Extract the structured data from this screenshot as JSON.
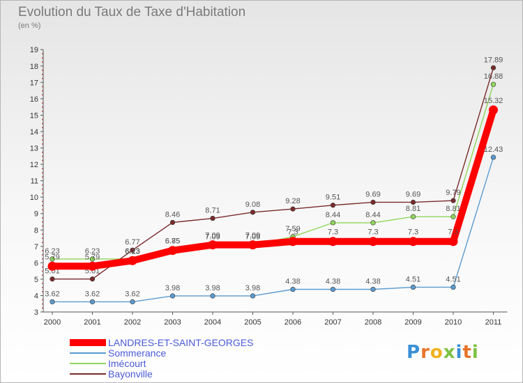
{
  "title": "Evolution du Taux de Taxe d'Habitation",
  "subtitle": "(en %)",
  "logo": {
    "text": "Proxiti",
    "letter_colors": [
      "#3a8fd6",
      "#e8742a",
      "#f0b21e",
      "#7cc242",
      "#3a8fd6",
      "#e8742a",
      "#7cc242"
    ]
  },
  "chart_data": {
    "type": "line",
    "x": [
      "2000",
      "2001",
      "2002",
      "2003",
      "2004",
      "2005",
      "2006",
      "2007",
      "2008",
      "2009",
      "2010",
      "2011"
    ],
    "ylim": [
      3,
      19
    ],
    "yticks": [
      3,
      4,
      5,
      6,
      7,
      8,
      9,
      10,
      11,
      12,
      13,
      14,
      15,
      16,
      17,
      18,
      19
    ],
    "grid": false,
    "legend_position": "bottom-left",
    "series": [
      {
        "name": "Sommerance",
        "color": "#5a9bd0",
        "values": [
          3.62,
          3.62,
          3.62,
          3.98,
          3.98,
          3.98,
          4.38,
          4.38,
          4.38,
          4.51,
          4.51,
          12.43
        ],
        "labels": [
          "3.62",
          "3.62",
          "3.62",
          "3.98",
          "3.98",
          "3.98",
          "4.38",
          "4.38",
          "4.38",
          "4.51",
          "4.51",
          "12.43"
        ]
      },
      {
        "name": "Imécourt",
        "color": "#8fd65a",
        "values": [
          6.23,
          6.23,
          6.23,
          6.85,
          7.09,
          7.09,
          7.59,
          8.44,
          8.44,
          8.81,
          8.81,
          16.88
        ],
        "labels": [
          "6.23",
          "6.23",
          "6.23",
          "6.85",
          "7.09",
          "7.09",
          "7.59",
          "8.44",
          "8.44",
          "8.81",
          "8.81",
          "16.88"
        ]
      },
      {
        "name": "Bayonville",
        "color": "#7a2a2a",
        "values": [
          5.01,
          5.01,
          6.77,
          8.46,
          8.71,
          9.08,
          9.28,
          9.51,
          9.69,
          9.69,
          9.79,
          17.89
        ],
        "labels": [
          "5.01",
          "5.01",
          "6.77",
          "8.46",
          "8.71",
          "9.08",
          "9.28",
          "9.51",
          "9.69",
          "9.69",
          "9.79",
          "17.89"
        ]
      },
      {
        "name": "LANDRES-ET-SAINT-GEORGES",
        "color": "#ff0000",
        "highlight": true,
        "values": [
          5.79,
          5.79,
          6.13,
          6.75,
          7.09,
          7.09,
          7.3,
          7.3,
          7.3,
          7.3,
          7.3,
          15.32
        ],
        "labels": [
          "5.79",
          "5.79",
          "6.13",
          "6.75",
          "7.09",
          "7.09",
          "7.3",
          "7.3",
          "7.3",
          "7.3",
          "7.3",
          "15.32"
        ]
      }
    ],
    "legend": [
      {
        "name": "LANDRES-ET-SAINT-GEORGES",
        "color": "#ff0000"
      },
      {
        "name": "Sommerance",
        "color": "#5a9bd0"
      },
      {
        "name": "Imécourt",
        "color": "#8fd65a"
      },
      {
        "name": "Bayonville",
        "color": "#7a2a2a"
      }
    ]
  }
}
